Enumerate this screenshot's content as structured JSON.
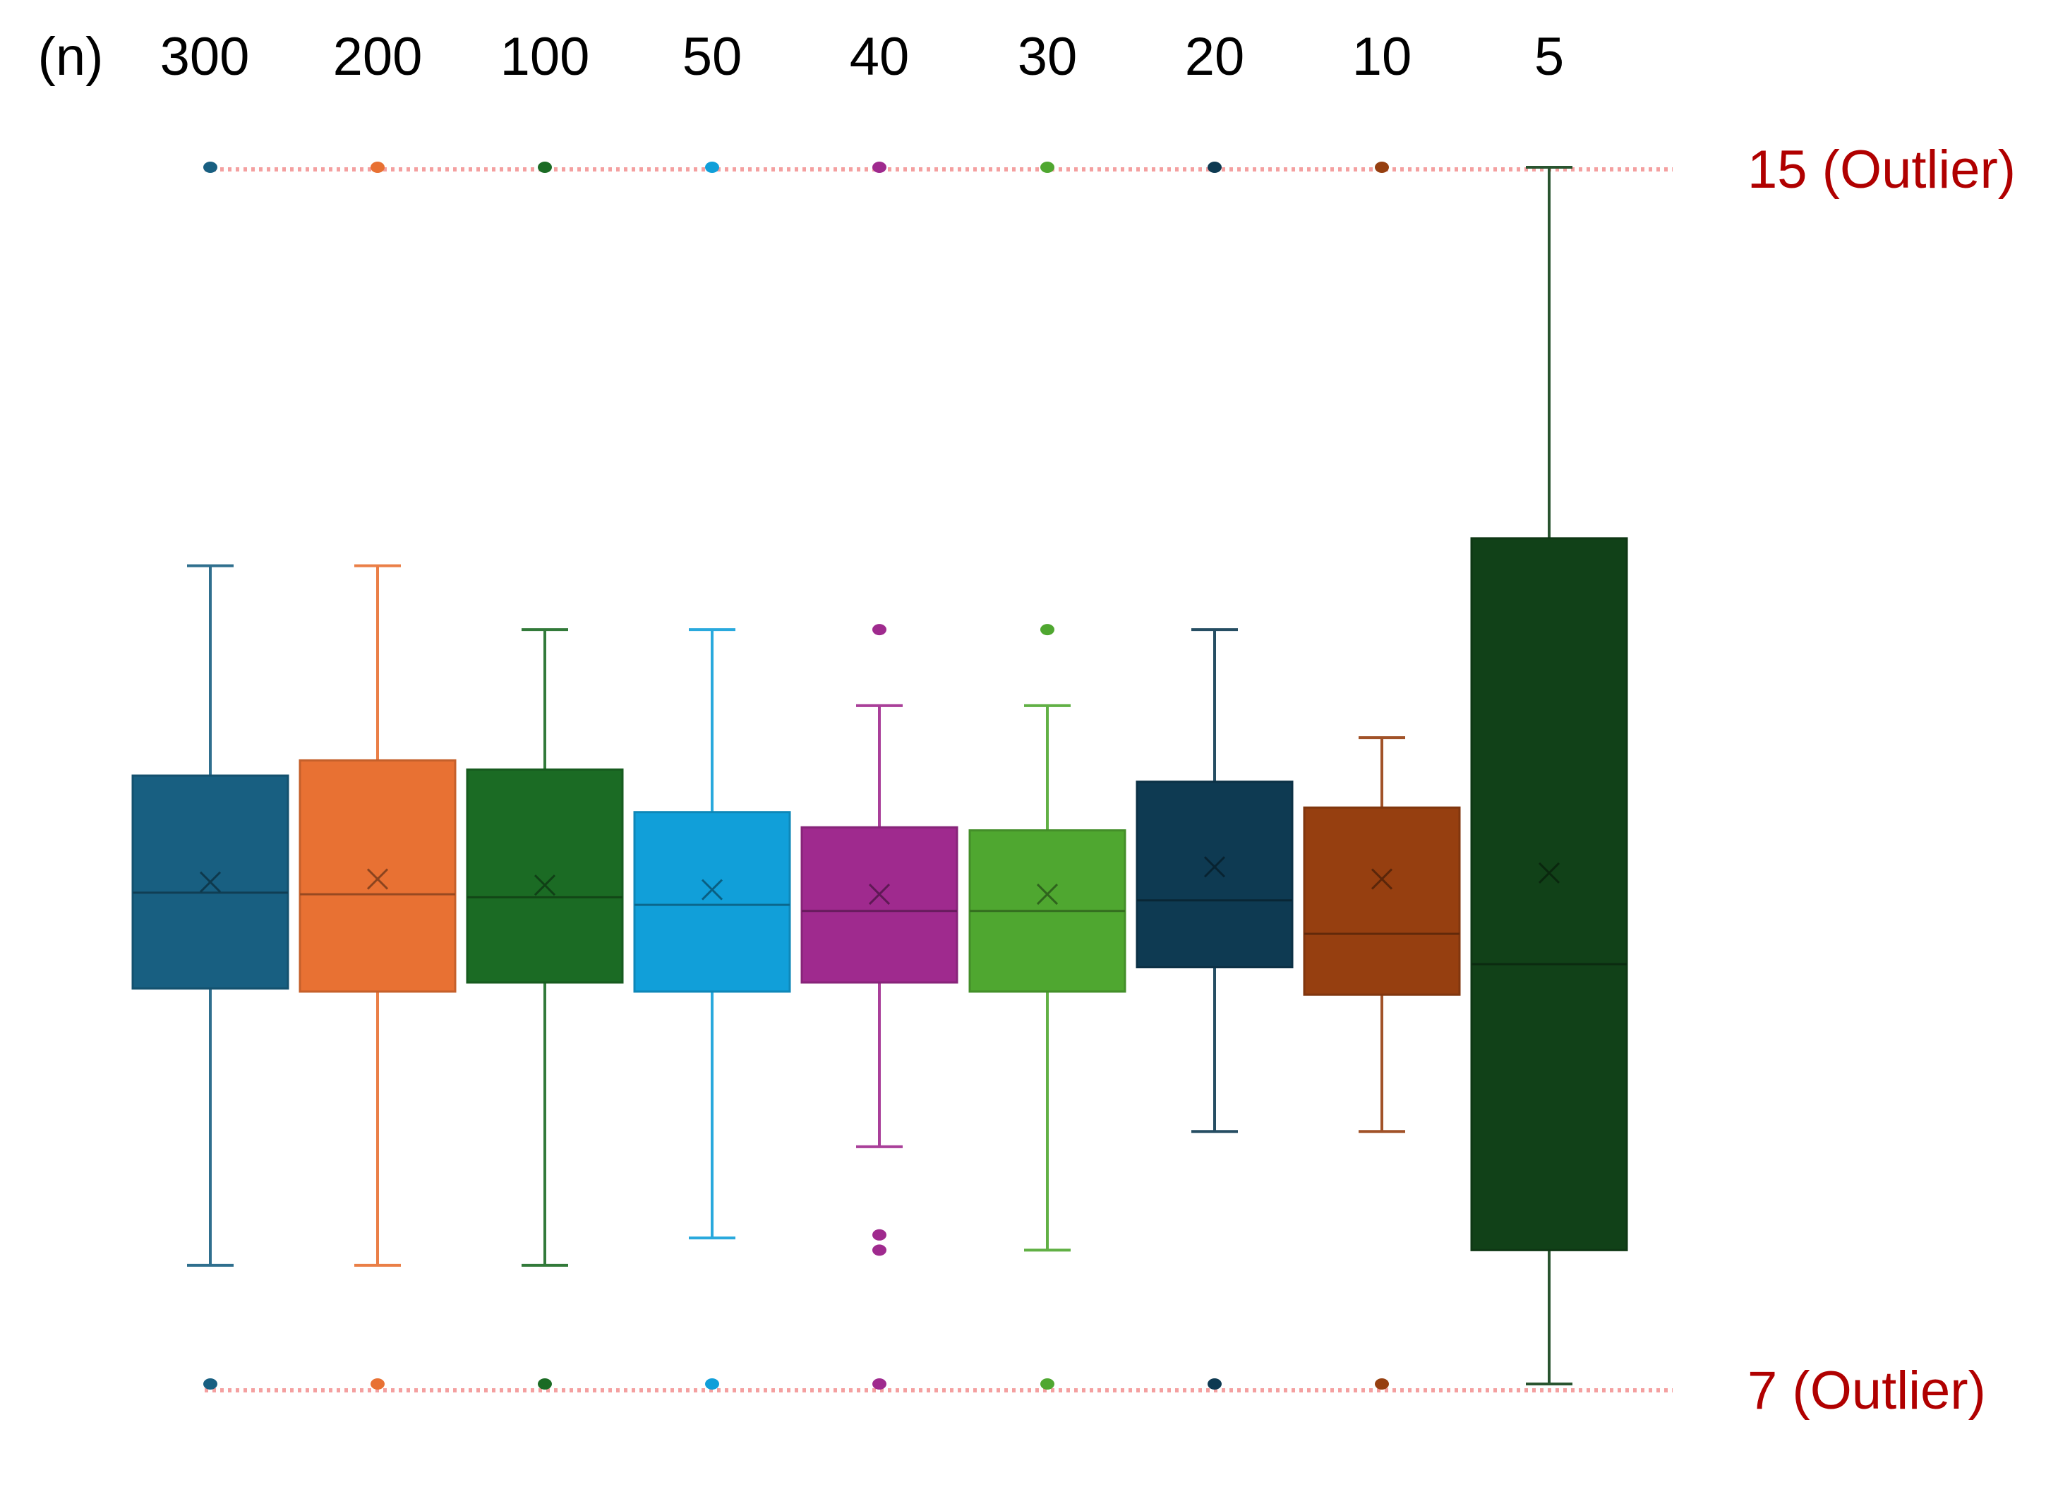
{
  "chart_data": {
    "type": "box",
    "x_axis_title": "(n)",
    "categories": [
      "300",
      "200",
      "100",
      "50",
      "40",
      "30",
      "20",
      "10",
      "5"
    ],
    "colors": [
      "#185f81",
      "#e87133",
      "#1b6b24",
      "#119fd9",
      "#9f2a8e",
      "#4fa730",
      "#0e3a52",
      "#963f10",
      "#114118"
    ],
    "ylim": [
      7,
      15
    ],
    "boxes": [
      {
        "n": "300",
        "whisker_low": 7.78,
        "q1": 9.6,
        "median": 10.23,
        "mean": 10.3,
        "q3": 11.0,
        "whisker_high": 12.38,
        "outliers": [
          7,
          15
        ]
      },
      {
        "n": "200",
        "whisker_low": 7.78,
        "q1": 9.58,
        "median": 10.22,
        "mean": 10.32,
        "q3": 11.1,
        "whisker_high": 12.38,
        "outliers": [
          7,
          15
        ]
      },
      {
        "n": "100",
        "whisker_low": 7.78,
        "q1": 9.64,
        "median": 10.2,
        "mean": 10.28,
        "q3": 11.04,
        "whisker_high": 11.96,
        "outliers": [
          7,
          15
        ]
      },
      {
        "n": "50",
        "whisker_low": 7.96,
        "q1": 9.58,
        "median": 10.15,
        "mean": 10.25,
        "q3": 10.76,
        "whisker_high": 11.96,
        "outliers": [
          7,
          15
        ]
      },
      {
        "n": "40",
        "whisker_low": 8.56,
        "q1": 9.64,
        "median": 10.11,
        "mean": 10.22,
        "q3": 10.66,
        "whisker_high": 11.46,
        "outliers": [
          7,
          7.88,
          7.98,
          11.96,
          15
        ]
      },
      {
        "n": "30",
        "whisker_low": 7.88,
        "q1": 9.58,
        "median": 10.11,
        "mean": 10.22,
        "q3": 10.64,
        "whisker_high": 11.46,
        "outliers": [
          7,
          11.96,
          15
        ]
      },
      {
        "n": "20",
        "whisker_low": 8.66,
        "q1": 9.74,
        "median": 10.18,
        "mean": 10.4,
        "q3": 10.96,
        "whisker_high": 11.96,
        "outliers": [
          7,
          15
        ]
      },
      {
        "n": "10",
        "whisker_low": 8.66,
        "q1": 9.56,
        "median": 9.96,
        "mean": 10.32,
        "q3": 10.79,
        "whisker_high": 11.25,
        "outliers": [
          7,
          15
        ]
      },
      {
        "n": "5",
        "whisker_low": 7,
        "q1": 7.88,
        "median": 9.76,
        "mean": 10.36,
        "q3": 12.56,
        "whisker_high": 15,
        "outliers": []
      }
    ],
    "reference_lines": [
      {
        "value": 15,
        "label": "15 (Outlier)",
        "color": "#f4a0a0"
      },
      {
        "value": 7,
        "label": "7 (Outlier)",
        "color": "#f4a0a0"
      }
    ],
    "label_color": "#b00000"
  }
}
